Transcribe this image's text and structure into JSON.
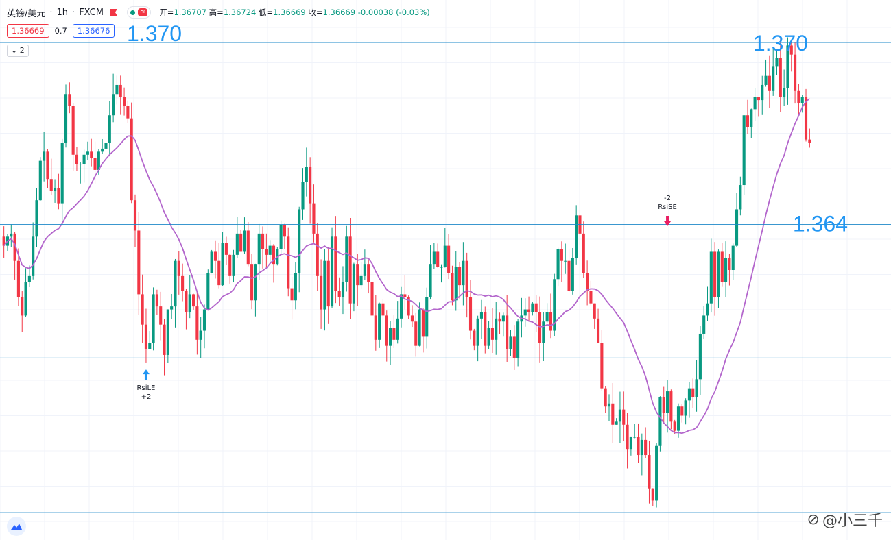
{
  "header": {
    "symbol": "英镑/美元",
    "separator": "·",
    "interval": "1h",
    "exchange": "FXCM",
    "flag_icon": "flag-icon",
    "wave_icon": "≈",
    "open_label": "开=",
    "open": "1.36707",
    "high_label": "高=",
    "high": "1.36724",
    "low_label": "低=",
    "low": "1.36669",
    "close_label": "收=",
    "close": "1.36669",
    "change": "-0.00038 (-0.03%)"
  },
  "prices": {
    "bid": "1.36669",
    "spread": "0.7",
    "ask": "1.36676"
  },
  "collapse_label": "2",
  "watermark": "@小三千",
  "colors": {
    "up": "#089981",
    "down": "#f23645",
    "ma": "#b366cc",
    "level": "#1e88c8",
    "label": "#2196f3"
  },
  "chart_data": {
    "type": "candlestick",
    "ylim": [
      1.3536,
      1.3714
    ],
    "levels": [
      {
        "value": 1.37,
        "label": "1.370",
        "label_pos": "top-left"
      },
      {
        "value": 1.37,
        "label": "1.370",
        "label_pos": "top-right"
      },
      {
        "value": 1.364,
        "label": "1.364",
        "label_pos": "right"
      },
      {
        "value": 1.3596
      },
      {
        "value": 1.3545
      }
    ],
    "current_price": 1.36669,
    "signals": [
      {
        "name": "RsiLE",
        "qty": "+2",
        "direction": "up",
        "index": 39
      },
      {
        "name": "RsiSE",
        "qty": "-2",
        "direction": "down",
        "index": 182
      }
    ],
    "candles_close": [
      1.3633,
      1.3636,
      1.3637,
      1.3628,
      1.3616,
      1.361,
      1.3621,
      1.3623,
      1.3636,
      1.3648,
      1.3661,
      1.3664,
      1.3655,
      1.3651,
      1.3652,
      1.3647,
      1.3667,
      1.3683,
      1.3679,
      1.3663,
      1.366,
      1.366,
      1.3663,
      1.3664,
      1.3662,
      1.3658,
      1.3664,
      1.3665,
      1.3667,
      1.3676,
      1.3683,
      1.3686,
      1.3682,
      1.3679,
      1.3675,
      1.3648,
      1.3638,
      1.3617,
      1.3607,
      1.3599,
      1.3601,
      1.3617,
      1.3613,
      1.3607,
      1.3597,
      1.3612,
      1.3613,
      1.3628,
      1.3623,
      1.3618,
      1.3611,
      1.3617,
      1.3613,
      1.3602,
      1.3605,
      1.3612,
      1.3624,
      1.3631,
      1.3628,
      1.362,
      1.3634,
      1.363,
      1.3623,
      1.363,
      1.3637,
      1.3631,
      1.3638,
      1.3627,
      1.3615,
      1.3627,
      1.3637,
      1.3632,
      1.363,
      1.3633,
      1.3627,
      1.3632,
      1.364,
      1.3636,
      1.3619,
      1.3615,
      1.3624,
      1.3645,
      1.3654,
      1.3659,
      1.3647,
      1.3637,
      1.3623,
      1.3612,
      1.3628,
      1.3613,
      1.3636,
      1.3618,
      1.3616,
      1.3621,
      1.3636,
      1.3614,
      1.3627,
      1.362,
      1.3623,
      1.3627,
      1.3621,
      1.361,
      1.3602,
      1.3614,
      1.361,
      1.36,
      1.3606,
      1.3602,
      1.3609,
      1.3617,
      1.3616,
      1.361,
      1.3608,
      1.36,
      1.3612,
      1.3603,
      1.3616,
      1.3627,
      1.3631,
      1.3626,
      1.3626,
      1.3633,
      1.3624,
      1.3615,
      1.3626,
      1.362,
      1.3628,
      1.3616,
      1.3605,
      1.36,
      1.3609,
      1.3611,
      1.36,
      1.3606,
      1.3602,
      1.3609,
      1.3608,
      1.361,
      1.3599,
      1.3603,
      1.3596,
      1.3608,
      1.361,
      1.3612,
      1.3611,
      1.3614,
      1.3611,
      1.3601,
      1.3608,
      1.3611,
      1.3605,
      1.3622,
      1.3632,
      1.3628,
      1.3628,
      1.3618,
      1.3629,
      1.3643,
      1.3637,
      1.3624,
      1.3618,
      1.3614,
      1.3609,
      1.3601,
      1.3586,
      1.358,
      1.3581,
      1.3574,
      1.3575,
      1.3579,
      1.3574,
      1.3566,
      1.357,
      1.357,
      1.3564,
      1.3569,
      1.3564,
      1.3553,
      1.3549,
      1.3567,
      1.3583,
      1.3578,
      1.3585,
      1.3575,
      1.3572,
      1.358,
      1.3577,
      1.3582,
      1.3586,
      1.3583,
      1.3589,
      1.3604,
      1.361,
      1.3614,
      1.3631,
      1.3616,
      1.3631,
      1.3621,
      1.3629,
      1.3625,
      1.3633,
      1.3645,
      1.3653,
      1.3676,
      1.3672,
      1.3678,
      1.3682,
      1.3681,
      1.3686,
      1.3689,
      1.3684,
      1.3692,
      1.3695,
      1.3682,
      1.3685,
      1.3699,
      1.3696,
      1.3684,
      1.368,
      1.3682,
      1.3668,
      1.3667
    ]
  }
}
